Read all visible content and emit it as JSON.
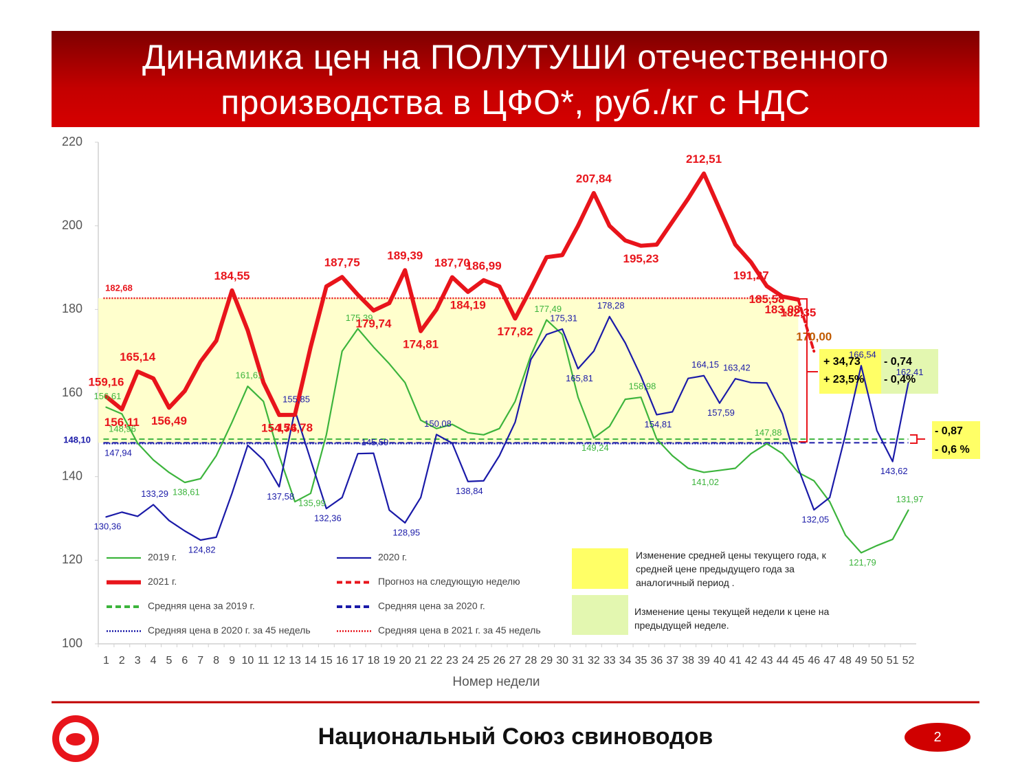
{
  "chart_data": {
    "type": "line",
    "title": "Динамика цен на ПОЛУТУШИ отечественного производства в ЦФО*, руб./кг с НДС",
    "x_label": "Номер недели",
    "categories": [
      1,
      2,
      3,
      4,
      5,
      6,
      7,
      8,
      9,
      10,
      11,
      12,
      13,
      14,
      15,
      16,
      17,
      18,
      19,
      20,
      21,
      22,
      23,
      24,
      25,
      26,
      27,
      28,
      29,
      30,
      31,
      32,
      33,
      34,
      35,
      36,
      37,
      38,
      39,
      40,
      41,
      42,
      43,
      44,
      45,
      46,
      47,
      48,
      49,
      50,
      51,
      52
    ],
    "ylim": [
      100,
      220
    ],
    "yticks": [
      100,
      120,
      140,
      160,
      180,
      200,
      220
    ],
    "grid": false,
    "series": [
      {
        "name": "2019 г.",
        "color": "#3cb43c",
        "line_style": "solid",
        "values": [
          156.61,
          155,
          148,
          144,
          141,
          138.61,
          139.5,
          145,
          153,
          161.61,
          158,
          145,
          134,
          135.99,
          150,
          170,
          175.39,
          171,
          167,
          162.5,
          153.5,
          151.5,
          152.5,
          150.5,
          150,
          151.5,
          158,
          169,
          177.49,
          174,
          159,
          149.24,
          152,
          158.5,
          158.98,
          149,
          145,
          142,
          141.02,
          141.5,
          142,
          145.5,
          147.88,
          145.5,
          141,
          139,
          134,
          126,
          121.79,
          123.5,
          125,
          131.97
        ],
        "value_labels": [
          "156,61",
          null,
          null,
          null,
          null,
          "138,61",
          null,
          null,
          null,
          "161,61",
          null,
          null,
          null,
          "135,99",
          null,
          null,
          "175,39",
          null,
          null,
          null,
          null,
          null,
          null,
          null,
          null,
          null,
          null,
          null,
          "177,49",
          null,
          null,
          "149,24",
          null,
          null,
          "158,98",
          null,
          null,
          null,
          "141,02",
          null,
          null,
          null,
          "147,88",
          null,
          null,
          null,
          null,
          null,
          "121,79",
          null,
          null,
          "131,97"
        ]
      },
      {
        "name": "2020 г.",
        "color": "#1a1aa8",
        "line_style": "solid",
        "values": [
          130.36,
          131.5,
          130.5,
          133.29,
          129.5,
          127,
          124.82,
          125.5,
          136,
          147.5,
          144,
          137.58,
          155.85,
          144,
          132.36,
          135,
          145.5,
          145.59,
          132,
          128.95,
          135,
          150.08,
          148,
          138.84,
          139,
          145,
          153,
          168,
          174,
          175.31,
          165.81,
          170,
          178.28,
          172,
          164,
          154.81,
          155.5,
          163.5,
          164.15,
          157.59,
          163.42,
          162.5,
          162.4,
          155,
          142,
          132.05,
          135,
          150,
          166.54,
          151,
          143.62,
          162.41
        ],
        "value_labels": [
          "130,36",
          null,
          null,
          "133,29",
          null,
          null,
          "124,82",
          null,
          null,
          null,
          null,
          "137,58",
          "155,85",
          null,
          "132,36",
          null,
          null,
          "145,59",
          null,
          "128,95",
          null,
          "150,08",
          null,
          "138,84",
          null,
          null,
          null,
          null,
          null,
          "175,31",
          "165,81",
          null,
          "178,28",
          null,
          null,
          "154,81",
          null,
          null,
          "164,15",
          "157,59",
          "163,42",
          null,
          null,
          null,
          null,
          "132,05",
          null,
          null,
          "166,54",
          null,
          "143,62",
          "162,41"
        ]
      },
      {
        "name": "2021 г.",
        "color": "#e8141b",
        "line_style": "thick",
        "values": [
          159.16,
          156.11,
          165.14,
          163.5,
          156.49,
          160.5,
          167.5,
          172.5,
          184.55,
          175,
          162.5,
          154.76,
          154.78,
          171,
          185.5,
          187.75,
          183.5,
          179.74,
          181.5,
          189.39,
          174.81,
          180,
          187.7,
          184.19,
          186.99,
          185.5,
          177.82,
          185,
          192.5,
          193,
          200,
          207.84,
          200,
          196.5,
          195.23,
          195.5,
          201,
          206.5,
          212.51,
          204,
          195.5,
          191.27,
          185.58,
          183.08,
          182.35,
          null,
          null,
          null,
          null,
          null,
          null,
          null
        ],
        "value_labels": [
          "159,16",
          "156,11",
          "165,14",
          null,
          "156,49",
          null,
          null,
          null,
          "184,55",
          null,
          null,
          "154,76",
          "154,78",
          null,
          null,
          "187,75",
          null,
          "179,74",
          null,
          "189,39",
          "174,81",
          null,
          "187,70",
          "184,19",
          "186,99",
          null,
          "177,82",
          null,
          null,
          null,
          null,
          "207,84",
          null,
          null,
          "195,23",
          null,
          null,
          null,
          "212,51",
          null,
          null,
          "191,27",
          "185,58",
          "183,08",
          "182,35",
          null,
          null,
          null,
          null,
          null,
          null,
          null
        ]
      },
      {
        "name": "Прогноз на следующую неделю",
        "color": "#e8141b",
        "line_style": "dashed",
        "values": [
          null,
          null,
          null,
          null,
          null,
          null,
          null,
          null,
          null,
          null,
          null,
          null,
          null,
          null,
          null,
          null,
          null,
          null,
          null,
          null,
          null,
          null,
          null,
          null,
          null,
          null,
          null,
          null,
          null,
          null,
          null,
          null,
          null,
          null,
          null,
          null,
          null,
          null,
          null,
          null,
          null,
          null,
          null,
          null,
          182.35,
          170.0,
          null,
          null,
          null,
          null,
          null,
          null
        ],
        "value_labels": [
          null,
          null,
          null,
          null,
          null,
          null,
          null,
          null,
          null,
          null,
          null,
          null,
          null,
          null,
          null,
          null,
          null,
          null,
          null,
          null,
          null,
          null,
          null,
          null,
          null,
          null,
          null,
          null,
          null,
          null,
          null,
          null,
          null,
          null,
          null,
          null,
          null,
          null,
          null,
          null,
          null,
          null,
          null,
          null,
          null,
          "170,00",
          null,
          null,
          null,
          null,
          null,
          null
        ]
      }
    ],
    "reference_lines": [
      {
        "name": "Средняя цена за 2019 г.",
        "color": "#3cb43c",
        "line_style": "dashed",
        "value": 148.96,
        "value_label": "148,96"
      },
      {
        "name": "Средняя цена за 2020 г.",
        "color": "#1a1aa8",
        "line_style": "dashed",
        "value": 148.1,
        "value_label": "148,10"
      },
      {
        "name": "Средняя цена в 2020 г. за 45 недель",
        "color": "#1a1aa8",
        "line_style": "dotted",
        "value": 147.94,
        "value_label": "147,94"
      },
      {
        "name": "Средняя цена в 2021 г. за 45 недель",
        "color": "#e8141b",
        "line_style": "dotted",
        "value": 182.68,
        "value_label": "182,68"
      }
    ],
    "annotations": {
      "yearly_change": [
        "+ 34,73",
        "+ 23,5%"
      ],
      "weekly_change": [
        "- 0,74",
        "- 0,4%"
      ],
      "average_change": [
        "- 0,87",
        "- 0,6 %"
      ]
    },
    "legend_notes": [
      "Изменение средней цены текущего года, к средней цене предыдущего года за аналогичный период .",
      "Изменение цены текущей недели к цене на предыдущей неделе."
    ]
  },
  "footer": {
    "text": "Национальный Союз свиноводов",
    "page": 2
  }
}
